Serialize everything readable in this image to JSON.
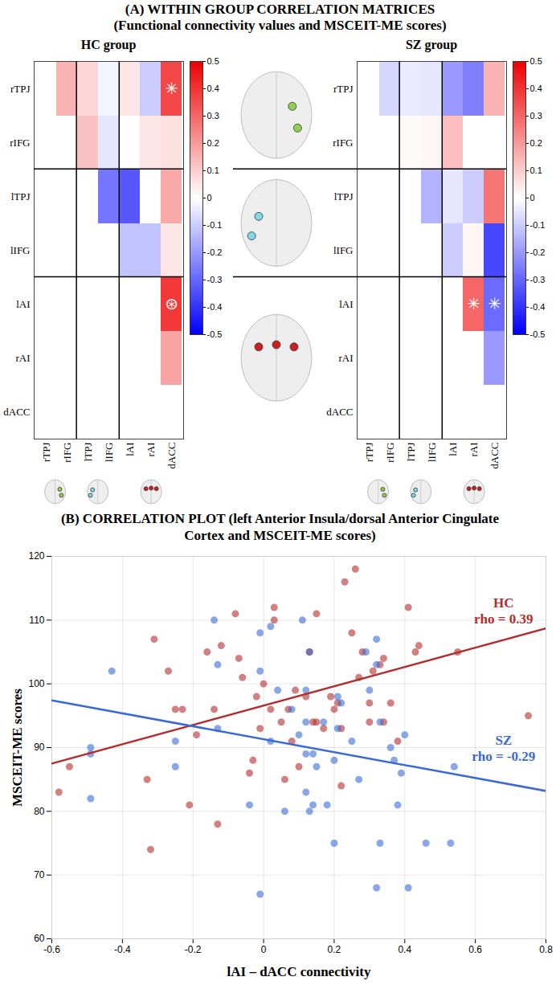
{
  "chart_data": [
    {
      "type": "heatmap",
      "panel_title": "(A) WITHIN GROUP CORRELATION MATRICES",
      "panel_subtitle": "(Functional connectivity values and MSCEIT-ME scores)",
      "title": "HC group",
      "labels": [
        "rTPJ",
        "rIFG",
        "lTPJ",
        "lIFG",
        "lAI",
        "rAI",
        "dACC"
      ],
      "matrix": [
        [
          null,
          0.15,
          0.08,
          -0.02,
          0.05,
          -0.1,
          0.36
        ],
        [
          null,
          null,
          0.12,
          -0.05,
          0.0,
          0.05,
          0.06
        ],
        [
          null,
          null,
          null,
          -0.27,
          -0.33,
          0.0,
          0.17
        ],
        [
          null,
          null,
          null,
          null,
          -0.12,
          -0.12,
          0.05
        ],
        [
          null,
          null,
          null,
          null,
          null,
          0.0,
          0.39
        ],
        [
          null,
          null,
          null,
          null,
          null,
          null,
          0.18
        ],
        [
          null,
          null,
          null,
          null,
          null,
          null,
          null
        ]
      ],
      "markers": [
        {
          "row": "rTPJ",
          "col": "dACC",
          "symbol": "✳"
        },
        {
          "row": "lAI",
          "col": "dACC",
          "symbol": "⊛"
        }
      ],
      "colorbar": {
        "range": [
          -0.5,
          0.5
        ],
        "ticks": [
          -0.5,
          -0.4,
          -0.3,
          -0.2,
          -0.1,
          0,
          0.1,
          0.2,
          0.3,
          0.4,
          0.5
        ],
        "colors": [
          "#0000ff",
          "#ffffff",
          "#ee0000"
        ]
      }
    },
    {
      "type": "heatmap",
      "title": "SZ group",
      "labels": [
        "rTPJ",
        "rIFG",
        "lTPJ",
        "lIFG",
        "lAI",
        "rAI",
        "dACC"
      ],
      "matrix": [
        [
          null,
          -0.08,
          -0.04,
          -0.05,
          -0.2,
          -0.25,
          0.15
        ],
        [
          null,
          null,
          0.01,
          0.02,
          0.13,
          0.0,
          0.0
        ],
        [
          null,
          null,
          null,
          -0.15,
          -0.05,
          -0.1,
          0.27
        ],
        [
          null,
          null,
          null,
          null,
          -0.1,
          0.02,
          -0.36
        ],
        [
          null,
          null,
          null,
          null,
          null,
          0.3,
          -0.29
        ],
        [
          null,
          null,
          null,
          null,
          null,
          null,
          -0.2
        ],
        [
          null,
          null,
          null,
          null,
          null,
          null,
          null
        ]
      ],
      "markers": [
        {
          "row": "lAI",
          "col": "rAI",
          "symbol": "✳"
        },
        {
          "row": "lAI",
          "col": "dACC",
          "symbol": "✳"
        }
      ],
      "colorbar": {
        "range": [
          -0.5,
          0.5
        ],
        "ticks": [
          -0.5,
          -0.4,
          -0.3,
          -0.2,
          -0.1,
          0,
          0.1,
          0.2,
          0.3,
          0.4,
          0.5
        ],
        "colors": [
          "#0000ff",
          "#ffffff",
          "#ee0000"
        ]
      }
    },
    {
      "type": "scatter",
      "title": "(B) CORRELATION PLOT (left Anterior Insula/dorsal Anterior Cingulate Cortex and MSCEIT-ME scores)",
      "x_label": "lAI – dACC connectivity",
      "y_label": "MSCEIT-ME scores",
      "xlim": [
        -0.6,
        0.8
      ],
      "xticks": [
        -0.6,
        -0.4,
        -0.2,
        0,
        0.2,
        0.4,
        0.6,
        0.8
      ],
      "ylim": [
        60,
        120
      ],
      "yticks": [
        60,
        70,
        80,
        90,
        100,
        110,
        120
      ],
      "grid": true,
      "series": [
        {
          "name": "HC",
          "color": "#b22d2d",
          "rho_label": "rho = 0.39",
          "label_at": [
            0.68,
            111.5
          ],
          "x": [
            -0.58,
            -0.55,
            -0.33,
            -0.32,
            -0.31,
            -0.27,
            -0.25,
            -0.23,
            -0.21,
            -0.19,
            -0.16,
            -0.14,
            -0.13,
            -0.12,
            -0.08,
            -0.07,
            -0.06,
            -0.04,
            -0.03,
            -0.02,
            -0.01,
            0.0,
            0.02,
            0.03,
            0.03,
            0.05,
            0.06,
            0.07,
            0.08,
            0.09,
            0.1,
            0.12,
            0.13,
            0.14,
            0.15,
            0.15,
            0.17,
            0.19,
            0.2,
            0.21,
            0.22,
            0.23,
            0.25,
            0.26,
            0.27,
            0.28,
            0.3,
            0.3,
            0.31,
            0.33,
            0.34,
            0.34,
            0.36,
            0.38,
            0.41,
            0.43,
            0.44,
            0.55,
            0.75,
            0.22
          ],
          "y": [
            83,
            87,
            85,
            74,
            107,
            102,
            96,
            96,
            81,
            92,
            105,
            96,
            78,
            106,
            111,
            104,
            101,
            86,
            88,
            98,
            93,
            100,
            96,
            110,
            112,
            94,
            85,
            96,
            91,
            99,
            87,
            98,
            105,
            94,
            94,
            111,
            93,
            98,
            96,
            97,
            84,
            116,
            108,
            118,
            101,
            105,
            94,
            97,
            102,
            103,
            94,
            104,
            97,
            91,
            112,
            105,
            106,
            105,
            95,
            93
          ],
          "fit": {
            "x": [
              -0.6,
              0.8
            ],
            "y": [
              87.5,
              108.7
            ]
          }
        },
        {
          "name": "SZ",
          "color": "#3a6ad4",
          "rho_label": "rho = -0.29",
          "label_at": [
            0.68,
            90
          ],
          "x": [
            -0.49,
            -0.49,
            -0.49,
            -0.43,
            -0.25,
            -0.25,
            -0.14,
            -0.13,
            -0.13,
            -0.04,
            -0.01,
            -0.01,
            -0.01,
            0.02,
            0.02,
            0.04,
            0.06,
            0.08,
            0.1,
            0.11,
            0.12,
            0.12,
            0.12,
            0.12,
            0.13,
            0.13,
            0.14,
            0.14,
            0.15,
            0.17,
            0.18,
            0.2,
            0.2,
            0.21,
            0.22,
            0.25,
            0.27,
            0.29,
            0.3,
            0.32,
            0.32,
            0.32,
            0.33,
            0.33,
            0.36,
            0.37,
            0.38,
            0.39,
            0.4,
            0.41,
            0.46,
            0.53,
            0.54,
            0.21
          ],
          "y": [
            90,
            89,
            82,
            102,
            91,
            87,
            110,
            103,
            93,
            81,
            108,
            102,
            67,
            91,
            109,
            99,
            80,
            96,
            92,
            110,
            83,
            89,
            94,
            99,
            105,
            80,
            81,
            89,
            87,
            94,
            81,
            88,
            75,
            98,
            97,
            91,
            85,
            105,
            99,
            107,
            103,
            68,
            94,
            75,
            90,
            88,
            81,
            86,
            92,
            68,
            75,
            75,
            87,
            93
          ],
          "fit": {
            "x": [
              -0.6,
              0.8
            ],
            "y": [
              97.4,
              83.2
            ]
          }
        }
      ]
    }
  ]
}
